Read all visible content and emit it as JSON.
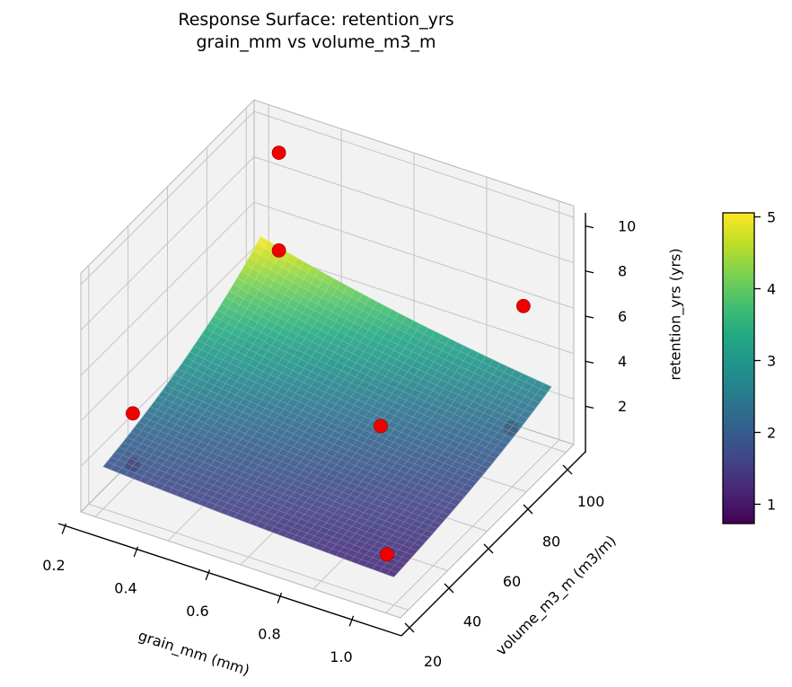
{
  "title": {
    "line1": "Response Surface: retention_yrs",
    "line2": "grain_mm vs volume_m3_m"
  },
  "chart_data": {
    "type": "surface3d",
    "title": "Response Surface: retention_yrs — grain_mm vs volume_m3_m",
    "x_axis": {
      "label": "grain_mm (mm)",
      "tick_labels": [
        "0.2",
        "0.4",
        "0.6",
        "0.8",
        "1.0"
      ],
      "tick_values": [
        0.2,
        0.4,
        0.6,
        0.8,
        1.0
      ],
      "range": [
        0.16,
        1.04
      ]
    },
    "y_axis": {
      "label": "volume_m3_m (m3/m)",
      "tick_labels": [
        "20",
        "40",
        "60",
        "80",
        "100"
      ],
      "tick_values": [
        20,
        40,
        60,
        80,
        100
      ],
      "range": [
        16,
        104
      ]
    },
    "z_axis": {
      "label": "retention_yrs (yrs)",
      "tick_labels": [
        "2",
        "4",
        "6",
        "8",
        "10"
      ],
      "tick_values": [
        2,
        4,
        6,
        8,
        10
      ],
      "range": [
        0,
        10.5
      ]
    },
    "surface": {
      "colormap": "viridis",
      "g_range": [
        0.2,
        1.0
      ],
      "v_range": [
        20,
        100
      ],
      "z_min": 0.74,
      "z_max": 5.05,
      "model": {
        "base": 0.74,
        "amp": 4.31,
        "ku": -0.8,
        "kw": 1.35
      },
      "corner_values": {
        "g_min_v_min": 1.86,
        "g_max_v_min": 1.24,
        "g_min_v_max": 5.05,
        "g_max_v_max": 2.68
      },
      "mesh_cells": 40,
      "opacity": 0.9
    },
    "scatter_points": [
      {
        "grain_mm": 0.25,
        "volume_m3_m": 100,
        "retention_yrs": 9.0,
        "behind_surface": false
      },
      {
        "grain_mm": 0.25,
        "volume_m3_m": 100,
        "retention_yrs": 4.7,
        "behind_surface": false
      },
      {
        "grain_mm": 0.95,
        "volume_m3_m": 95,
        "retention_yrs": 6.4,
        "behind_surface": false
      },
      {
        "grain_mm": 0.2,
        "volume_m3_m": 35,
        "retention_yrs": 2.9,
        "behind_surface": false
      },
      {
        "grain_mm": 0.2,
        "volume_m3_m": 35,
        "retention_yrs": 0.65,
        "behind_surface": true
      },
      {
        "grain_mm": 0.72,
        "volume_m3_m": 65,
        "retention_yrs": 2.5,
        "behind_surface": false
      },
      {
        "grain_mm": 0.97,
        "volume_m3_m": 85,
        "retention_yrs": 2.0,
        "behind_surface": true
      },
      {
        "grain_mm": 0.9,
        "volume_m3_m": 35,
        "retention_yrs": 0.4,
        "behind_surface": false
      }
    ],
    "colorbar": {
      "tick_labels": [
        "1",
        "2",
        "3",
        "4",
        "5"
      ],
      "tick_values": [
        1,
        2,
        3,
        4,
        5
      ],
      "vmin": 0.74,
      "vmax": 5.05
    },
    "colors": {
      "scatter": "#f20000",
      "scatter_edge": "#a80000",
      "pane": "#f2f2f2",
      "pane_edge": "#b5b5b5",
      "grid": "#c4c4c4",
      "axis_line": "#000000",
      "text": "#000000",
      "background": "#ffffff"
    },
    "viridis_stops": [
      "#440154",
      "#482475",
      "#414487",
      "#345e8d",
      "#29788e",
      "#21918c",
      "#22a784",
      "#42be71",
      "#7ad151",
      "#bdde26",
      "#fde725"
    ],
    "legend": "none",
    "grid": true
  }
}
